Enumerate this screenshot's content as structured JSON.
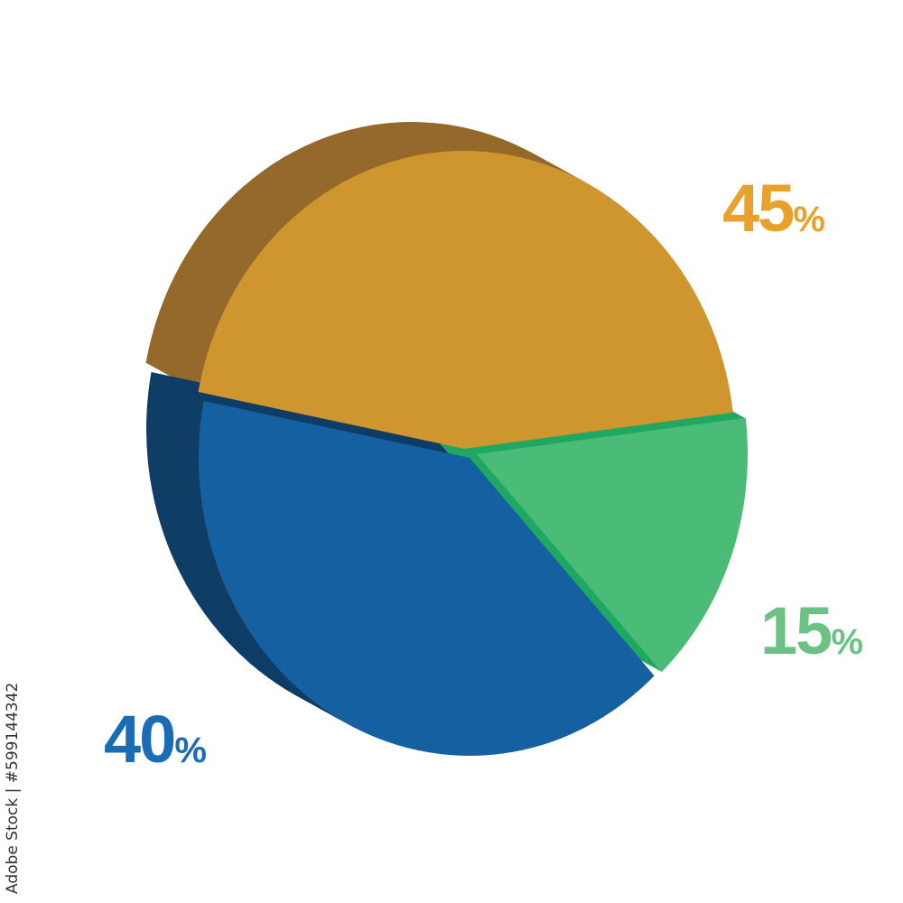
{
  "chart_data": {
    "type": "pie",
    "style": "3d",
    "slices": [
      {
        "label": "45%",
        "value": 45,
        "color": "#CF952E",
        "side_color": "#94692A",
        "label_color": "#E8A12A"
      },
      {
        "label": "15%",
        "value": 15,
        "color": "#4BBB78",
        "side_color": "#1FA862",
        "label_color": "#6CC184"
      },
      {
        "label": "40%",
        "value": 40,
        "color": "#1560A1",
        "side_color": "#0E3D66",
        "label_color": "#1A6DB5"
      }
    ]
  },
  "labels": {
    "gold": {
      "num": "45",
      "pct": "%"
    },
    "green": {
      "num": "15",
      "pct": "%"
    },
    "blue": {
      "num": "40",
      "pct": "%"
    }
  },
  "watermark": {
    "text": "Adobe Stock | #599144342"
  }
}
